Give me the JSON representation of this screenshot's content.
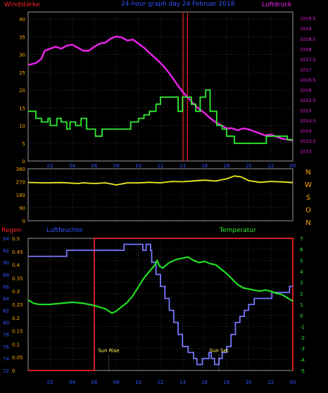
{
  "header": {
    "left_label": "Windstärke",
    "center_title": "24-hour graph day  24 Februar 2018",
    "right_label": "Luftdruck"
  },
  "colors": {
    "background": "#000000",
    "frame": "#9a9a9a",
    "grid": "#4a4a4a",
    "wind": "#33ee33",
    "pressure": "#ee22ee",
    "direction": "#eeee22",
    "rain": "#ee2222",
    "humidity": "#7777ff",
    "temperature": "#22dd22",
    "label_blue": "#3355ff",
    "label_red": "#ff2222",
    "label_green": "#33ee33",
    "label_orange": "#ffaa00",
    "label_magenta": "#ee22ee"
  },
  "x_labels": [
    "02",
    "04",
    "06",
    "08",
    "10",
    "12",
    "14",
    "16",
    "18",
    "20",
    "22",
    "00"
  ],
  "chart_data": [
    {
      "type": "line",
      "title": "24-hour graph day  24 Februar 2018",
      "ylabel": "Windstärke",
      "y2label": "Luftdruck",
      "ylim": [
        0,
        42
      ],
      "y2lim": [
        1012.5,
        1019.8
      ],
      "yticks": [
        "0",
        "5",
        "10",
        "15",
        "20",
        "25",
        "30",
        "35",
        "40"
      ],
      "y2ticks": [
        "1013",
        "1013.5",
        "1014",
        "1014.5",
        "1015",
        "1015.5",
        "1016",
        "1016.5",
        "1017",
        "1017.5",
        "1018",
        "1018.5",
        "1019",
        "1019.5"
      ],
      "series": [
        {
          "name": "Windstärke",
          "axis": "left",
          "step": true,
          "points": [
            [
              0,
              14
            ],
            [
              0.7,
              12
            ],
            [
              1.2,
              11
            ],
            [
              1.8,
              12
            ],
            [
              2,
              10
            ],
            [
              2.6,
              12
            ],
            [
              3,
              11
            ],
            [
              3.5,
              9
            ],
            [
              3.8,
              11
            ],
            [
              4.3,
              10
            ],
            [
              4.8,
              12
            ],
            [
              5.3,
              9
            ],
            [
              5.8,
              9
            ],
            [
              6.1,
              7
            ],
            [
              6.7,
              9
            ],
            [
              7.5,
              9
            ],
            [
              8.5,
              9
            ],
            [
              9.3,
              11
            ],
            [
              10,
              12
            ],
            [
              10.5,
              13
            ],
            [
              11,
              14
            ],
            [
              11.6,
              16
            ],
            [
              12,
              18
            ],
            [
              12.6,
              18
            ],
            [
              13.2,
              18
            ],
            [
              13.6,
              14
            ],
            [
              14,
              18
            ],
            [
              14.4,
              18
            ],
            [
              14.8,
              16
            ],
            [
              15.2,
              14
            ],
            [
              15.6,
              18
            ],
            [
              16.1,
              20
            ],
            [
              16.5,
              14
            ],
            [
              17.1,
              10
            ],
            [
              17.6,
              9
            ],
            [
              18,
              7
            ],
            [
              18.7,
              5
            ],
            [
              19.5,
              5
            ],
            [
              20,
              5
            ],
            [
              21.3,
              5
            ],
            [
              21.6,
              7
            ],
            [
              22.3,
              7
            ],
            [
              23,
              7
            ],
            [
              23.5,
              6
            ],
            [
              23.9,
              6
            ],
            [
              24,
              6
            ]
          ]
        },
        {
          "name": "Luftdruck",
          "axis": "right",
          "points": [
            [
              0,
              1017.2
            ],
            [
              0.7,
              1017.3
            ],
            [
              1.2,
              1017.5
            ],
            [
              1.5,
              1017.9
            ],
            [
              2,
              1018.0
            ],
            [
              2.5,
              1018.1
            ],
            [
              3,
              1018.0
            ],
            [
              3.5,
              1018.15
            ],
            [
              4,
              1018.2
            ],
            [
              4.5,
              1018.05
            ],
            [
              5,
              1017.9
            ],
            [
              5.5,
              1017.9
            ],
            [
              6,
              1018.1
            ],
            [
              6.5,
              1018.25
            ],
            [
              7,
              1018.3
            ],
            [
              7.5,
              1018.5
            ],
            [
              8,
              1018.6
            ],
            [
              8.5,
              1018.55
            ],
            [
              9,
              1018.4
            ],
            [
              9.5,
              1018.45
            ],
            [
              10,
              1018.25
            ],
            [
              10.5,
              1018.05
            ],
            [
              11,
              1017.8
            ],
            [
              11.5,
              1017.55
            ],
            [
              12,
              1017.3
            ],
            [
              12.5,
              1017.0
            ],
            [
              13,
              1016.65
            ],
            [
              13.5,
              1016.25
            ],
            [
              14,
              1015.9
            ],
            [
              14.5,
              1015.6
            ],
            [
              15,
              1015.3
            ],
            [
              15.5,
              1015.05
            ],
            [
              16,
              1014.85
            ],
            [
              16.5,
              1014.6
            ],
            [
              17,
              1014.4
            ],
            [
              17.5,
              1014.25
            ],
            [
              18,
              1014.1
            ],
            [
              18.5,
              1014.1
            ],
            [
              19,
              1014.0
            ],
            [
              19.5,
              1014.1
            ],
            [
              20,
              1014.05
            ],
            [
              20.5,
              1013.95
            ],
            [
              21,
              1013.85
            ],
            [
              21.5,
              1013.75
            ],
            [
              22,
              1013.8
            ],
            [
              22.5,
              1013.7
            ],
            [
              23,
              1013.6
            ],
            [
              23.5,
              1013.55
            ],
            [
              24,
              1013.5
            ]
          ]
        }
      ],
      "markers": [
        {
          "x": 14.05,
          "color": "#ee2222"
        },
        {
          "x": 14.45,
          "color": "#ee2222"
        }
      ]
    },
    {
      "type": "line",
      "ylim": [
        0,
        360
      ],
      "yticks": [
        "0",
        "90",
        "180",
        "270",
        "360"
      ],
      "compass_labels": [
        "N",
        "W",
        "S",
        "O",
        "N"
      ],
      "series": [
        {
          "name": "direction",
          "points": [
            [
              0,
              265
            ],
            [
              1.5,
              262
            ],
            [
              3,
              264
            ],
            [
              4.5,
              258
            ],
            [
              5,
              262
            ],
            [
              6,
              258
            ],
            [
              7,
              262
            ],
            [
              8,
              248
            ],
            [
              9,
              262
            ],
            [
              10,
              262
            ],
            [
              11,
              266
            ],
            [
              12,
              262
            ],
            [
              13,
              272
            ],
            [
              14,
              270
            ],
            [
              15,
              276
            ],
            [
              16,
              281
            ],
            [
              17,
              275
            ],
            [
              18,
              290
            ],
            [
              18.7,
              310
            ],
            [
              19.3,
              304
            ],
            [
              20,
              278
            ],
            [
              21,
              266
            ],
            [
              22,
              272
            ],
            [
              23,
              269
            ],
            [
              24,
              264
            ]
          ]
        }
      ]
    },
    {
      "type": "line",
      "ylabel": "Regen",
      "y2label": "Luftfeuchte",
      "y3label": "Temperatur",
      "rain_ticks": [
        "0",
        "0.05",
        "0.1",
        "0.15",
        "0.2",
        "0.25",
        "0.3",
        "0.35",
        "0.4",
        "0.45",
        "0.5"
      ],
      "humidity_ticks": [
        "72",
        "74",
        "76",
        "78",
        "80",
        "82",
        "84",
        "86",
        "88",
        "90",
        "92",
        "94"
      ],
      "temperature_ticks": [
        "-5",
        "-4",
        "-3",
        "-2",
        "-1",
        "0",
        "1",
        "2",
        "3",
        "4",
        "5",
        "6",
        "7"
      ],
      "rain_lim": [
        0,
        0.5
      ],
      "humidity_lim": [
        72,
        94
      ],
      "temperature_lim": [
        -5,
        7
      ],
      "series": [
        {
          "name": "Regen",
          "step": true,
          "points": [
            [
              0,
              0
            ],
            [
              6,
              0
            ],
            [
              6,
              0.5
            ],
            [
              24,
              0.5
            ],
            [
              24,
              0
            ]
          ]
        },
        {
          "name": "Luftfeuchte",
          "step": true,
          "points": [
            [
              0,
              91
            ],
            [
              1,
              91
            ],
            [
              1.5,
              91
            ],
            [
              2.5,
              91
            ],
            [
              3,
              91
            ],
            [
              3.5,
              92
            ],
            [
              6,
              92
            ],
            [
              6.3,
              92
            ],
            [
              8,
              92
            ],
            [
              8.7,
              93
            ],
            [
              10.2,
              93
            ],
            [
              10.4,
              92
            ],
            [
              10.7,
              93
            ],
            [
              11.1,
              92
            ],
            [
              11.2,
              90
            ],
            [
              11.6,
              88
            ],
            [
              12,
              86
            ],
            [
              12.4,
              84
            ],
            [
              12.8,
              82
            ],
            [
              13.2,
              80
            ],
            [
              13.6,
              78
            ],
            [
              14,
              76
            ],
            [
              14.5,
              75
            ],
            [
              15,
              74
            ],
            [
              15.3,
              73
            ],
            [
              15.8,
              74
            ],
            [
              16.4,
              75
            ],
            [
              16.6,
              74
            ],
            [
              16.9,
              73
            ],
            [
              17.3,
              74
            ],
            [
              17.6,
              75
            ],
            [
              18,
              76
            ],
            [
              18.4,
              78
            ],
            [
              18.8,
              80
            ],
            [
              19.2,
              81
            ],
            [
              19.6,
              82
            ],
            [
              20,
              83
            ],
            [
              20.5,
              84
            ],
            [
              22.1,
              85
            ],
            [
              23.5,
              85
            ],
            [
              23.7,
              86
            ],
            [
              24,
              86
            ]
          ]
        },
        {
          "name": "Temperatur",
          "points": [
            [
              0,
              1.4
            ],
            [
              0.5,
              1.1
            ],
            [
              1,
              1.0
            ],
            [
              2,
              1.0
            ],
            [
              3,
              1.1
            ],
            [
              4,
              1.2
            ],
            [
              5,
              1.1
            ],
            [
              6,
              0.9
            ],
            [
              7,
              0.6
            ],
            [
              7.6,
              0.2
            ],
            [
              8,
              0.4
            ],
            [
              8.5,
              0.8
            ],
            [
              9,
              1.2
            ],
            [
              9.5,
              1.8
            ],
            [
              10,
              2.6
            ],
            [
              10.5,
              3.4
            ],
            [
              11,
              4.0
            ],
            [
              11.5,
              4.6
            ],
            [
              11.7,
              5.0
            ],
            [
              11.9,
              4.5
            ],
            [
              12.2,
              4.3
            ],
            [
              12.8,
              4.8
            ],
            [
              13.5,
              5.1
            ],
            [
              14,
              5.2
            ],
            [
              14.5,
              5.3
            ],
            [
              15,
              5.0
            ],
            [
              15.5,
              4.8
            ],
            [
              16,
              4.9
            ],
            [
              16.5,
              4.7
            ],
            [
              17,
              4.6
            ],
            [
              17.5,
              4.2
            ],
            [
              18,
              3.8
            ],
            [
              18.5,
              3.3
            ],
            [
              19,
              2.8
            ],
            [
              19.5,
              2.5
            ],
            [
              20,
              2.4
            ],
            [
              20.5,
              2.3
            ],
            [
              21,
              2.2
            ],
            [
              21.5,
              2.3
            ],
            [
              22,
              2.2
            ],
            [
              22.5,
              2.0
            ],
            [
              23,
              1.9
            ],
            [
              23.5,
              1.6
            ],
            [
              24,
              1.3
            ]
          ]
        }
      ],
      "annotations": [
        {
          "text": "Sun Rise",
          "x": 7.3
        },
        {
          "text": "Sun Set",
          "x": 17.3
        }
      ]
    }
  ]
}
